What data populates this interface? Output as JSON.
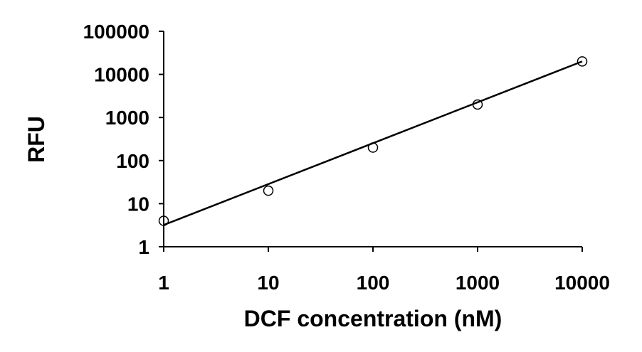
{
  "chart_data": {
    "type": "scatter",
    "title": "",
    "xlabel": "DCF concentration (nM)",
    "ylabel": "RFU",
    "x_scale": "log",
    "y_scale": "log",
    "xlim": [
      1,
      10000
    ],
    "ylim": [
      1,
      100000
    ],
    "x_ticks": [
      "1",
      "10",
      "100",
      "1000",
      "10000"
    ],
    "y_ticks": [
      "1",
      "10",
      "100",
      "1000",
      "10000",
      "100000"
    ],
    "grid": false,
    "legend": "none",
    "series": [
      {
        "marker": "open-circle",
        "x": [
          1,
          10,
          100,
          1000,
          10000
        ],
        "y": [
          4,
          20,
          200,
          2000,
          20000
        ]
      }
    ],
    "trendline": {
      "type": "power",
      "x": [
        1,
        10000
      ],
      "y": [
        3.2,
        20000
      ]
    },
    "colors": {
      "ink": "#000000",
      "background": "#ffffff"
    }
  }
}
